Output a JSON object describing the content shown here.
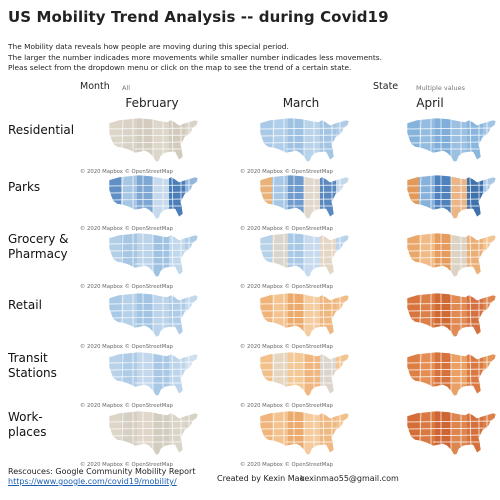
{
  "header": {
    "title": "US Mobility Trend Analysis -- during Covid19",
    "description": [
      "The Mobility data reveals how people are moving during this special period.",
      "The larger the number indicades more movements while smaller number indicades less movements.",
      "Pleas select from the dropdown menu or click on the map to see the trend of a certain state."
    ]
  },
  "filters": {
    "month": {
      "label": "Month",
      "value": "All"
    },
    "state": {
      "label": "State",
      "value": "Multiple values"
    }
  },
  "columns": [
    "February",
    "March",
    "April"
  ],
  "rows": [
    {
      "label_lines": [
        "Residential"
      ],
      "colors": [
        [
          "#dcd5c8",
          "#d9d2c6",
          "#d4cdbf",
          "#ddd6cb",
          "#d2cbbd",
          "#d9d3c8"
        ],
        [
          "#a9c9e6",
          "#b2cfe9",
          "#9fc2e2",
          "#b8d3ea",
          "#a3c4e3",
          "#aecbe7"
        ],
        [
          "#86b3dc",
          "#93bce0",
          "#7eaed9",
          "#9bc0e2",
          "#8ab6dd",
          "#a2c5e4"
        ]
      ]
    },
    {
      "label_lines": [
        "Parks"
      ],
      "colors": [
        [
          "#5f8fc4",
          "#a6c6e4",
          "#7ea8d3",
          "#c7d9ec",
          "#4b7db8",
          "#93b7dc"
        ],
        [
          "#e8b27a",
          "#a8c7e4",
          "#6f9ccc",
          "#e0d8cc",
          "#5a89c0",
          "#c4d8ec"
        ],
        [
          "#e39a59",
          "#86b1da",
          "#4f82bc",
          "#eab587",
          "#3f71ad",
          "#a9c8e5"
        ]
      ]
    },
    {
      "label_lines": [
        "Grocery &",
        "Pharmacy"
      ],
      "colors": [
        [
          "#b3cfe8",
          "#a6c6e4",
          "#bcd4ea",
          "#a0c2e2",
          "#c1d7eb",
          "#aecbe7"
        ],
        [
          "#b7d1e9",
          "#d9d5cc",
          "#a9c8e5",
          "#c8dbee",
          "#e3d6c4",
          "#bad2ea"
        ],
        [
          "#eaa76a",
          "#f0bb86",
          "#e59c5d",
          "#dcd3c4",
          "#ebae75",
          "#f2c493"
        ]
      ]
    },
    {
      "label_lines": [
        "Retail"
      ],
      "colors": [
        [
          "#aac9e6",
          "#b5d0e9",
          "#a3c4e3",
          "#bcd4eb",
          "#afcce7",
          "#c2d8ed"
        ],
        [
          "#f0b47b",
          "#f3c391",
          "#ecaa6d",
          "#f5cc9f",
          "#efb780",
          "#f1be89"
        ],
        [
          "#d8743d",
          "#dc8049",
          "#d06a35",
          "#e08a54",
          "#d57040",
          "#de8550"
        ]
      ]
    },
    {
      "label_lines": [
        "Transit",
        "Stations"
      ],
      "colors": [
        [
          "#b9d2ea",
          "#aecbe7",
          "#c3d8ed",
          "#a9c8e5",
          "#bdd5eb",
          "#cfdfee"
        ],
        [
          "#f1c08b",
          "#e6d6c0",
          "#f4c998",
          "#efb67f",
          "#dcd5cb",
          "#f2c490"
        ],
        [
          "#dd7e45",
          "#e48e55",
          "#d6723c",
          "#e9a064",
          "#da7a42",
          "#e39458"
        ]
      ]
    },
    {
      "label_lines": [
        "Work-",
        "places"
      ],
      "colors": [
        [
          "#ddd5c8",
          "#d6d0c4",
          "#e0d7ca",
          "#d2ccc1",
          "#dbd4c8",
          "#d8d1c5"
        ],
        [
          "#f0b57c",
          "#f3c28e",
          "#ecab6e",
          "#f5ca9c",
          "#efb984",
          "#f2c08b"
        ],
        [
          "#d46d38",
          "#da7a43",
          "#cf6532",
          "#de8650",
          "#d4703b",
          "#dc804a"
        ]
      ]
    }
  ],
  "map_credit": "© 2020 Mapbox © OpenStreetMap",
  "footer": {
    "source_label": "Rescouces: Google Community Mobility Report",
    "source_link": "https://www.google.com/covid19/mobility/",
    "author": "Created by Kexin Mao",
    "email": "kexinmao55@gmail.com"
  }
}
